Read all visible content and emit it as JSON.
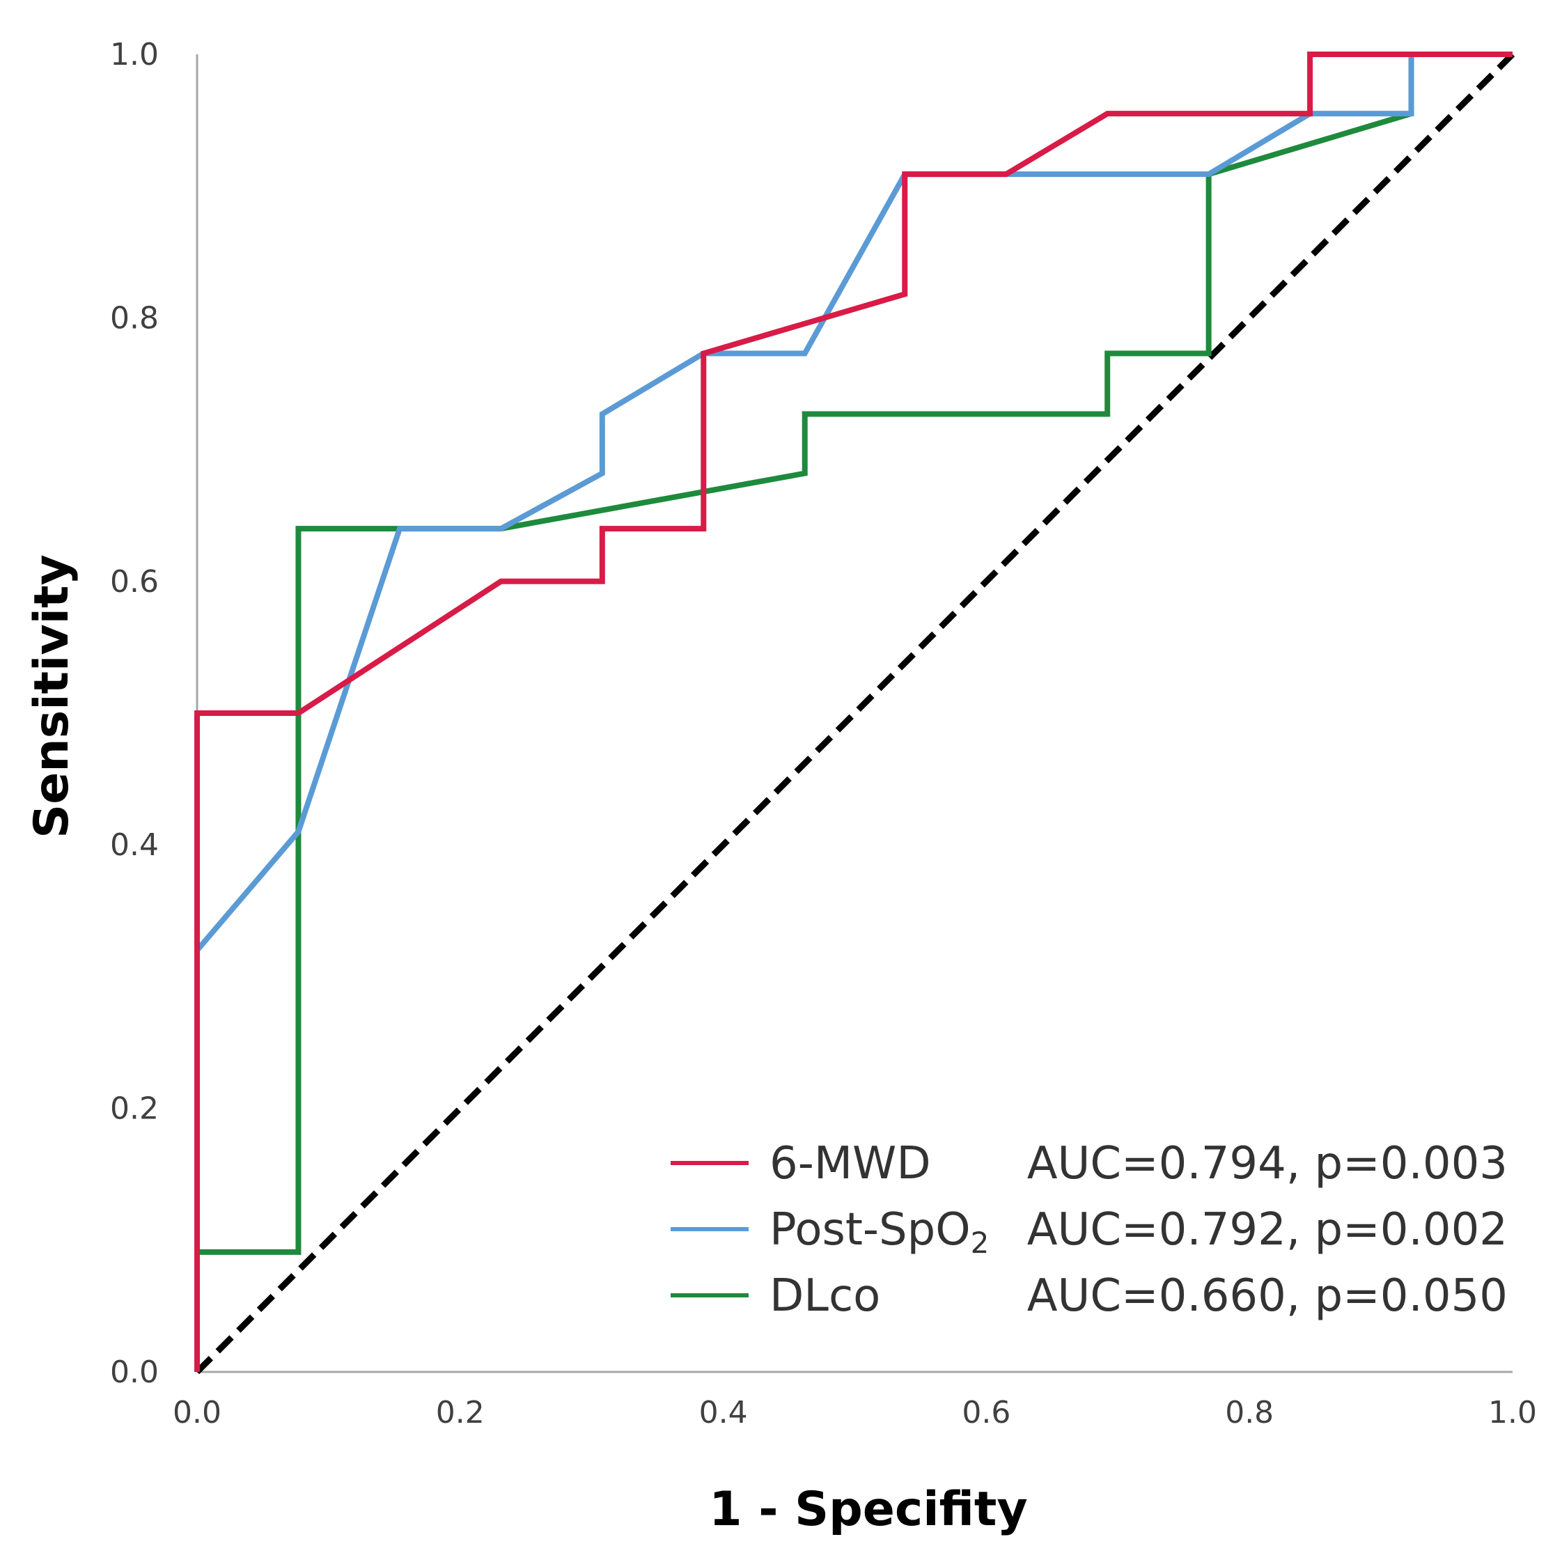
{
  "chart_data": {
    "type": "line",
    "title": "",
    "xlabel": "1 - Specifity",
    "ylabel": "Sensitivity",
    "xlim": [
      0.0,
      1.0
    ],
    "ylim": [
      0.0,
      1.0
    ],
    "x_ticks": [
      "0.0",
      "0.2",
      "0.4",
      "0.6",
      "0.8",
      "1.0"
    ],
    "y_ticks": [
      "0.0",
      "0.2",
      "0.4",
      "0.6",
      "0.8",
      "1.0"
    ],
    "grid": false,
    "legend_position": "bottom-right",
    "series": [
      {
        "name": "6-MWD",
        "name_main": "6-MWD",
        "name_sub": "",
        "auc_text": "AUC=0.794, p=0.003",
        "color": "#d81b47",
        "points": [
          [
            0.0,
            0.0
          ],
          [
            0.0,
            0.5
          ],
          [
            0.077,
            0.5
          ],
          [
            0.231,
            0.6
          ],
          [
            0.308,
            0.6
          ],
          [
            0.308,
            0.64
          ],
          [
            0.385,
            0.64
          ],
          [
            0.385,
            0.773
          ],
          [
            0.538,
            0.818
          ],
          [
            0.538,
            0.909
          ],
          [
            0.615,
            0.909
          ],
          [
            0.692,
            0.955
          ],
          [
            0.846,
            0.955
          ],
          [
            0.846,
            1.0
          ],
          [
            1.0,
            1.0
          ]
        ]
      },
      {
        "name": "Post-SpO2",
        "name_main": "Post-SpO",
        "name_sub": "2",
        "auc_text": "AUC=0.792, p=0.002",
        "color": "#5b9bd5",
        "points": [
          [
            0.0,
            0.32
          ],
          [
            0.077,
            0.41
          ],
          [
            0.154,
            0.64
          ],
          [
            0.231,
            0.64
          ],
          [
            0.308,
            0.682
          ],
          [
            0.308,
            0.727
          ],
          [
            0.385,
            0.773
          ],
          [
            0.462,
            0.773
          ],
          [
            0.538,
            0.909
          ],
          [
            0.769,
            0.909
          ],
          [
            0.846,
            0.955
          ],
          [
            0.923,
            0.955
          ],
          [
            0.923,
            1.0
          ],
          [
            1.0,
            1.0
          ]
        ]
      },
      {
        "name": "DLco",
        "name_main": "DLco",
        "name_sub": "",
        "auc_text": "AUC=0.660, p=0.050",
        "color": "#1e8a3c",
        "points": [
          [
            0.0,
            0.0
          ],
          [
            0.0,
            0.091
          ],
          [
            0.077,
            0.091
          ],
          [
            0.077,
            0.64
          ],
          [
            0.231,
            0.64
          ],
          [
            0.462,
            0.682
          ],
          [
            0.462,
            0.727
          ],
          [
            0.692,
            0.727
          ],
          [
            0.692,
            0.773
          ],
          [
            0.769,
            0.773
          ],
          [
            0.769,
            0.909
          ],
          [
            0.923,
            0.955
          ],
          [
            0.923,
            1.0
          ],
          [
            1.0,
            1.0
          ]
        ]
      }
    ],
    "reference_line": {
      "name": "chance",
      "points": [
        [
          0.0,
          0.0
        ],
        [
          1.0,
          1.0
        ]
      ],
      "color": "#000000",
      "style": "dashed"
    }
  }
}
